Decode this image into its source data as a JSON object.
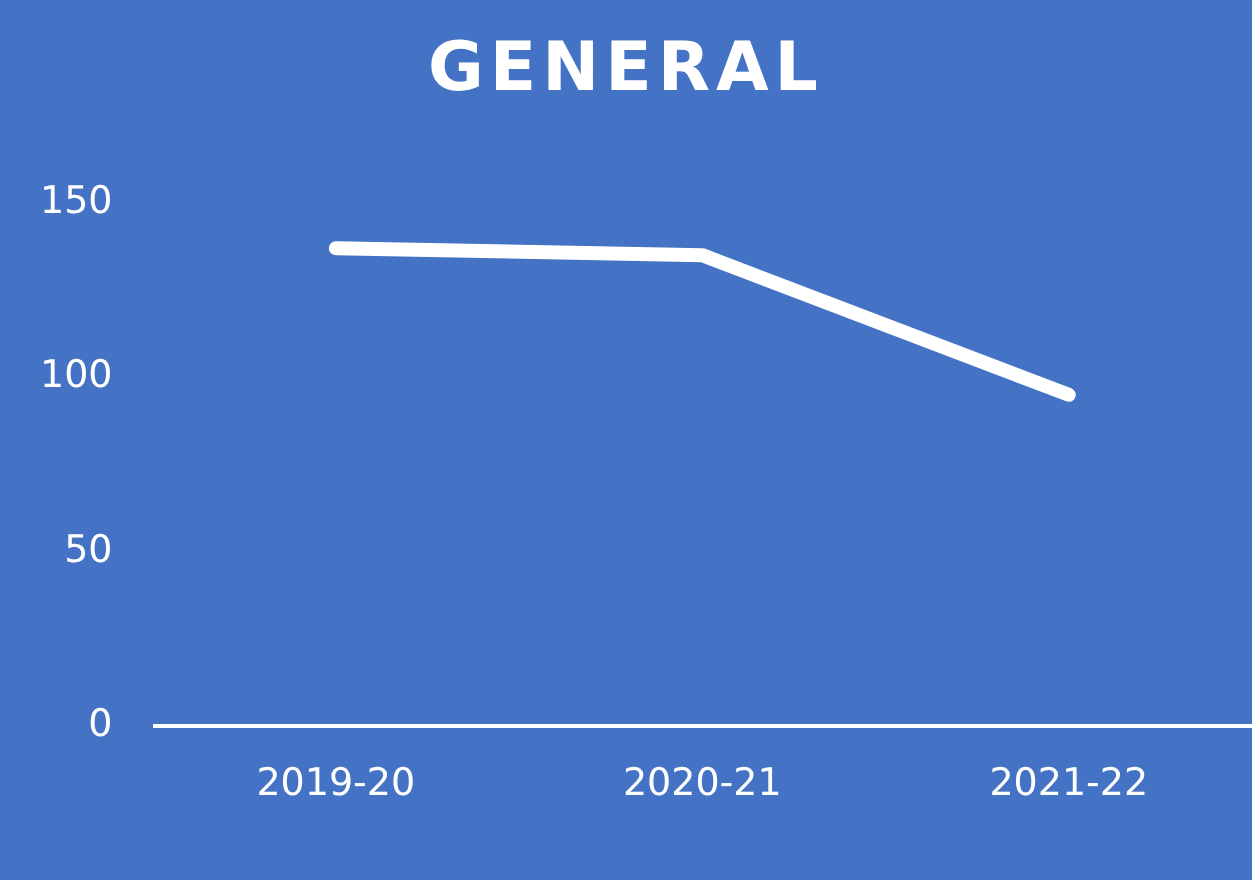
{
  "chart_data": {
    "type": "line",
    "title": "GENERAL",
    "categories": [
      "2019-20",
      "2020-21",
      "2021-22"
    ],
    "series": [
      {
        "color": "#ffffff",
        "values": [
          137,
          135,
          95
        ]
      }
    ],
    "ylim": [
      0,
      150
    ],
    "yticks": [
      0,
      50,
      100,
      150
    ],
    "grid": false,
    "legend": false,
    "marker": "none",
    "line_style": "solid"
  }
}
